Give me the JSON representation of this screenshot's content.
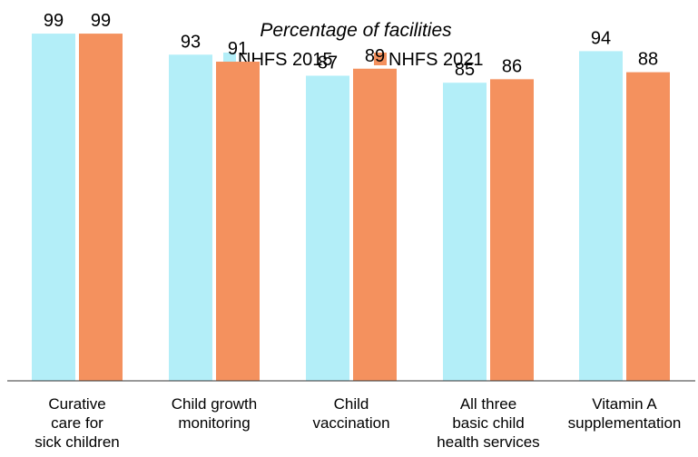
{
  "chart_data": {
    "type": "bar",
    "title": "Percentage of facilities",
    "xlabel": "",
    "ylabel": "",
    "ylim": [
      0,
      106
    ],
    "grid": false,
    "legend_position": "top-center",
    "categories": [
      "Curative care for sick children",
      "Child growth monitoring",
      "Child vaccination",
      "All three basic child health services",
      "Vitamin A supplementation"
    ],
    "category_lines": [
      [
        "Curative",
        "care for",
        "sick children"
      ],
      [
        "Child growth",
        "monitoring"
      ],
      [
        "Child",
        "vaccination"
      ],
      [
        "All three",
        "basic child",
        "health services"
      ],
      [
        "Vitamin A",
        "supplementation"
      ]
    ],
    "series": [
      {
        "name": "NHFS 2015",
        "color": "#b3eef8",
        "values": [
          99,
          93,
          87,
          85,
          94
        ]
      },
      {
        "name": "NHFS 2021",
        "color": "#f4915e",
        "values": [
          99,
          91,
          89,
          86,
          88
        ]
      }
    ]
  }
}
